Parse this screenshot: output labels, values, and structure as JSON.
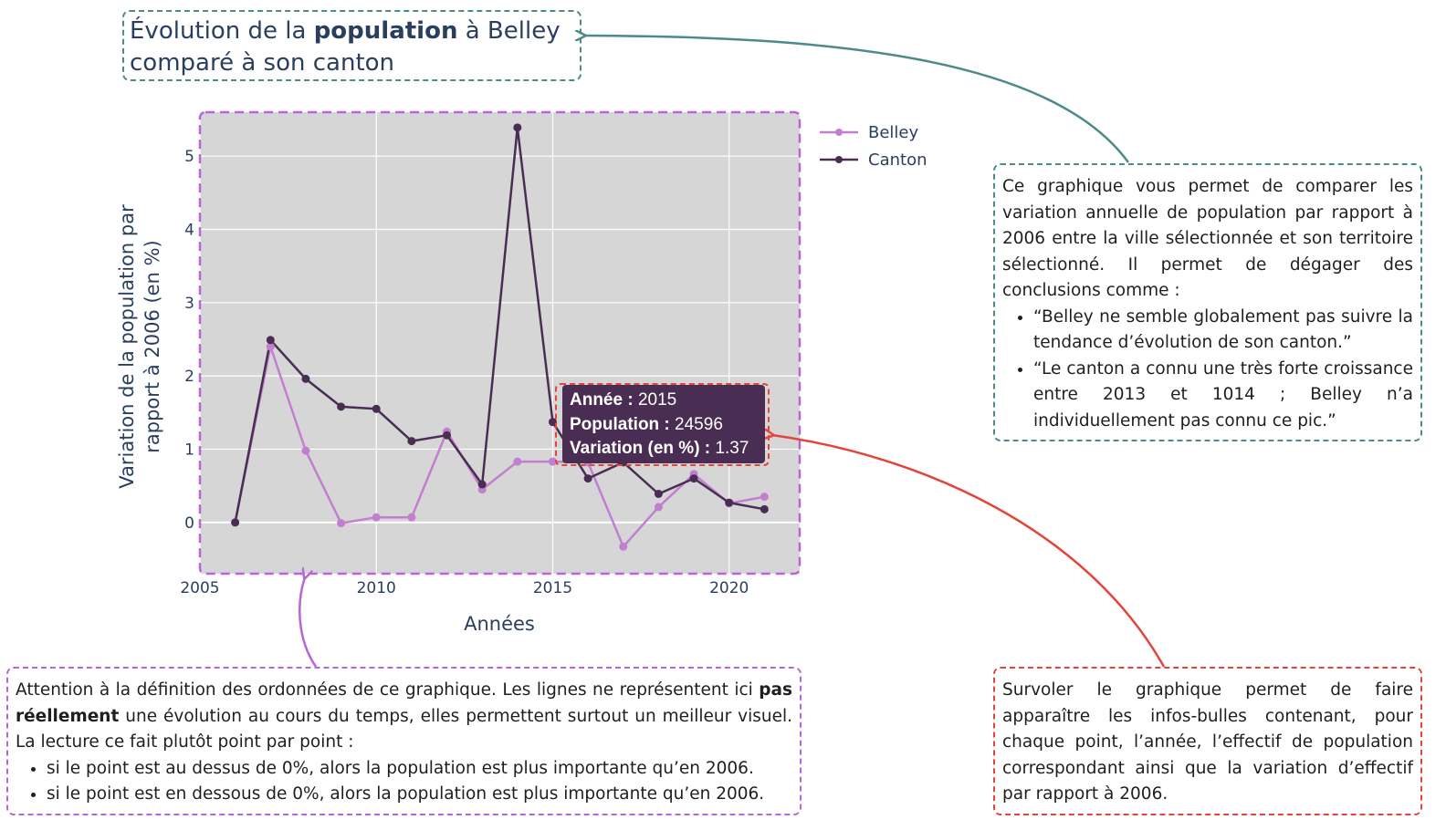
{
  "title": {
    "part1": "Évolution de la ",
    "bold": "population",
    "part2": " à Belley",
    "line2": "comparé à son canton"
  },
  "chart_data": {
    "type": "line",
    "xlabel": "Années",
    "ylabel_line1": "Variation de la population par",
    "ylabel_line2": "rapport à 2006 (en %)",
    "xlim": [
      2005,
      2022
    ],
    "ylim": [
      -0.7,
      5.6
    ],
    "xticks": [
      "2005",
      "2010",
      "2015",
      "2020"
    ],
    "yticks": [
      "0",
      "1",
      "2",
      "3",
      "4",
      "5"
    ],
    "grid": true,
    "legend_position": "top-right outside",
    "plot_background": "#d6d6d6",
    "series": [
      {
        "name": "Belley",
        "color": "#c27fd0",
        "x": [
          2006,
          2007,
          2008,
          2009,
          2010,
          2011,
          2012,
          2013,
          2014,
          2015,
          2016,
          2017,
          2018,
          2019,
          2020,
          2021
        ],
        "y": [
          0,
          2.4,
          0.98,
          -0.01,
          0.07,
          0.07,
          1.24,
          0.45,
          0.83,
          0.83,
          0.82,
          -0.33,
          0.21,
          0.66,
          0.26,
          0.35
        ]
      },
      {
        "name": "Canton",
        "color": "#4a2d53",
        "x": [
          2006,
          2007,
          2008,
          2009,
          2010,
          2011,
          2012,
          2013,
          2014,
          2015,
          2016,
          2017,
          2018,
          2019,
          2020,
          2021
        ],
        "y": [
          0,
          2.49,
          1.96,
          1.58,
          1.55,
          1.11,
          1.19,
          0.52,
          5.39,
          1.37,
          0.6,
          0.82,
          0.39,
          0.6,
          0.27,
          0.18
        ]
      }
    ],
    "tooltip": {
      "year_label": "Année :",
      "year_value": "2015",
      "pop_label": "Population :",
      "pop_value": "24596",
      "var_label": "Variation (en %) :",
      "var_value": "1.37"
    }
  },
  "notes": {
    "right_top": {
      "text": "Ce graphique vous permet de comparer les variation annuelle  de population par rapport à 2006 entre la ville sélectionnée et son territoire sélectionné. Il permet de dégager des conclusions comme :",
      "bullets": [
        "“Belley ne semble globalement pas suivre la tendance d’évolution de son canton.”",
        "“Le canton a connu une très forte croissance entre 2013 et 1014 ; Belley n’a individuellement pas connu ce pic.”"
      ]
    },
    "right_bottom": {
      "text": "Survoler le graphique permet de faire apparaître les infos-bulles contenant, pour chaque point, l’année, l’effectif de population correspondant ainsi que la variation d’effectif par rapport à 2006."
    },
    "bottom_left": {
      "text_before": "Attention à la définition des ordonnées de ce graphique. Les lignes ne représentent ici ",
      "bold": "pas réellement",
      "text_after": " une évolution au cours du temps, elles permettent surtout un meilleur visuel. La lecture ce fait plutôt point par point :",
      "bullets": [
        "si le point est au dessus de 0%, alors la population est plus importante qu’en 2006.",
        "si le point est en dessous de 0%, alors la population est plus importante qu’en 2006."
      ]
    }
  },
  "colors": {
    "teal": "#4d8a88",
    "red": "#e3453b",
    "purple": "#b865db"
  }
}
